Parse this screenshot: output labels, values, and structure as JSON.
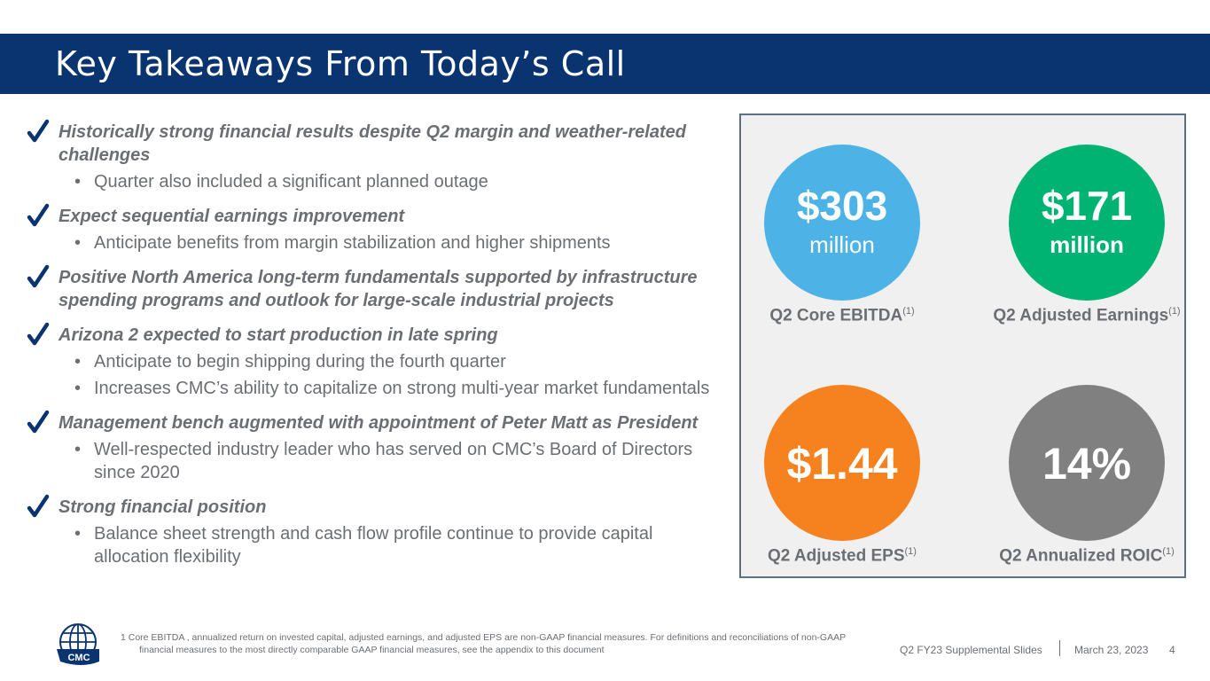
{
  "title": "Key Takeaways From Today’s Call",
  "takeaways": [
    {
      "head": "Historically strong financial results despite Q2 margin and weather-related challenges",
      "subs": [
        "Quarter also included a significant planned outage"
      ]
    },
    {
      "head": "Expect sequential earnings improvement",
      "subs": [
        "Anticipate benefits from margin stabilization and higher shipments"
      ]
    },
    {
      "head": "Positive North America long-term fundamentals supported by infrastructure spending programs and outlook for large-scale industrial projects",
      "subs": []
    },
    {
      "head": "Arizona 2 expected to start production in late spring",
      "subs": [
        "Anticipate to begin shipping during the fourth quarter",
        "Increases CMC’s ability to capitalize on strong multi-year market fundamentals"
      ]
    },
    {
      "head": "Management bench augmented with appointment of Peter Matt as President",
      "subs": [
        "Well-respected industry leader who has served on CMC’s Board of Directors since 2020"
      ]
    },
    {
      "head": "Strong financial position",
      "subs": [
        "Balance sheet strength and cash flow profile continue to provide capital allocation flexibility"
      ]
    }
  ],
  "bullet_glyph": "•",
  "metrics": [
    {
      "value": "$303",
      "unit": "million",
      "label": "Q2 Core EBITDA",
      "note": "(1)",
      "color": "#4db3e6"
    },
    {
      "value": "$171",
      "unit": "million",
      "label": "Q2 Adjusted Earnings",
      "note": "(1)",
      "color": "#00b373"
    },
    {
      "value": "$1.44",
      "unit": "",
      "label": "Q2 Adjusted EPS",
      "note": "(1)",
      "color": "#f5821f"
    },
    {
      "value": "14%",
      "unit": "",
      "label": "Q2 Annualized ROIC",
      "note": "(1)",
      "color": "#808080"
    }
  ],
  "logo_text": "CMC",
  "footnote_line1": "1 Core EBITDA , annualized return on invested capital, adjusted earnings, and adjusted EPS are non-GAAP financial measures. For definitions and reconciliations of non-GAAP",
  "footnote_line2": "financial measures to the most directly comparable GAAP financial measures, see the appendix to this document",
  "footer": {
    "deck": "Q2 FY23 Supplemental Slides",
    "date": "March 23, 2023",
    "page": "4"
  },
  "colors": {
    "brand_navy": "#0a3470",
    "check": "#0a3470",
    "text_gray": "#6b6e72"
  },
  "icons": {
    "check": "check-icon",
    "logo": "globe-logo-icon"
  }
}
